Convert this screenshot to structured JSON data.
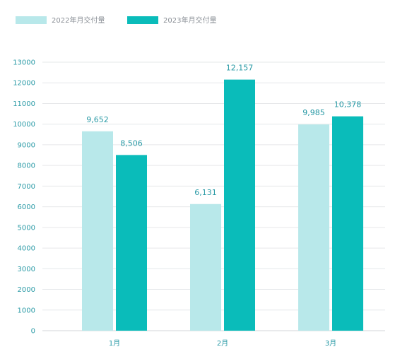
{
  "chart_data": {
    "type": "bar",
    "title": "",
    "xlabel": "",
    "ylabel": "",
    "categories": [
      "1月",
      "2月",
      "3月"
    ],
    "series": [
      {
        "name": "2022年月交付量",
        "color": "#b8e8ea",
        "values": [
          9652,
          6131,
          9985
        ],
        "labels": [
          "9,652",
          "6,131",
          "9,985"
        ]
      },
      {
        "name": "2023年月交付量",
        "color": "#0abcba",
        "values": [
          8506,
          12157,
          10378
        ],
        "labels": [
          "8,506",
          "12,157",
          "10,378"
        ]
      }
    ],
    "ylim": [
      0,
      13000
    ],
    "yticks": [
      "0",
      "1000",
      "2000",
      "3000",
      "4000",
      "5000",
      "6000",
      "7000",
      "8000",
      "9000",
      "10000",
      "11000",
      "12000",
      "13000"
    ],
    "grid": true,
    "legend_position": "top-left"
  }
}
